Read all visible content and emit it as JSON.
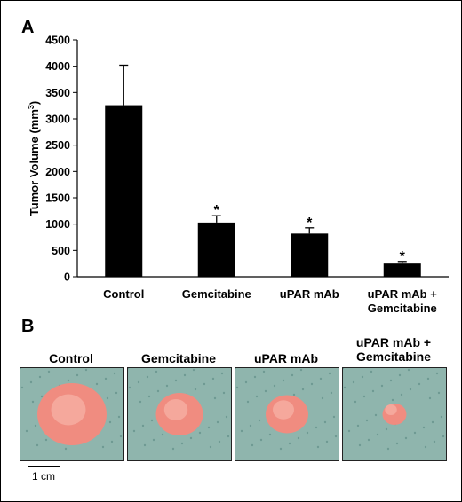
{
  "panels": {
    "a": "A",
    "b": "B"
  },
  "chart_data": {
    "type": "bar",
    "categories": [
      "Control",
      "Gemcitabine",
      "uPAR mAb",
      "uPAR mAb +\nGemcitabine"
    ],
    "values": [
      3260,
      1030,
      820,
      250
    ],
    "errors": [
      760,
      130,
      110,
      40
    ],
    "significance": [
      "",
      "*",
      "*",
      "*"
    ],
    "ylabel": "Tumor Volume (mm³)",
    "ylim": [
      0,
      4500
    ],
    "yticks": [
      0,
      500,
      1000,
      1500,
      2000,
      2500,
      3000,
      3500,
      4000,
      4500
    ],
    "bar_color": "#000000",
    "grid": false
  },
  "photos": {
    "titles": [
      "Control",
      "Gemcitabine",
      "uPAR mAb",
      "uPAR mAb +\nGemcitabine"
    ],
    "background_color": "#8fb5ad",
    "tumor_color": "#f08c80",
    "tumor_sizes": [
      1.0,
      0.68,
      0.62,
      0.34
    ],
    "scale_label": "1 cm"
  }
}
